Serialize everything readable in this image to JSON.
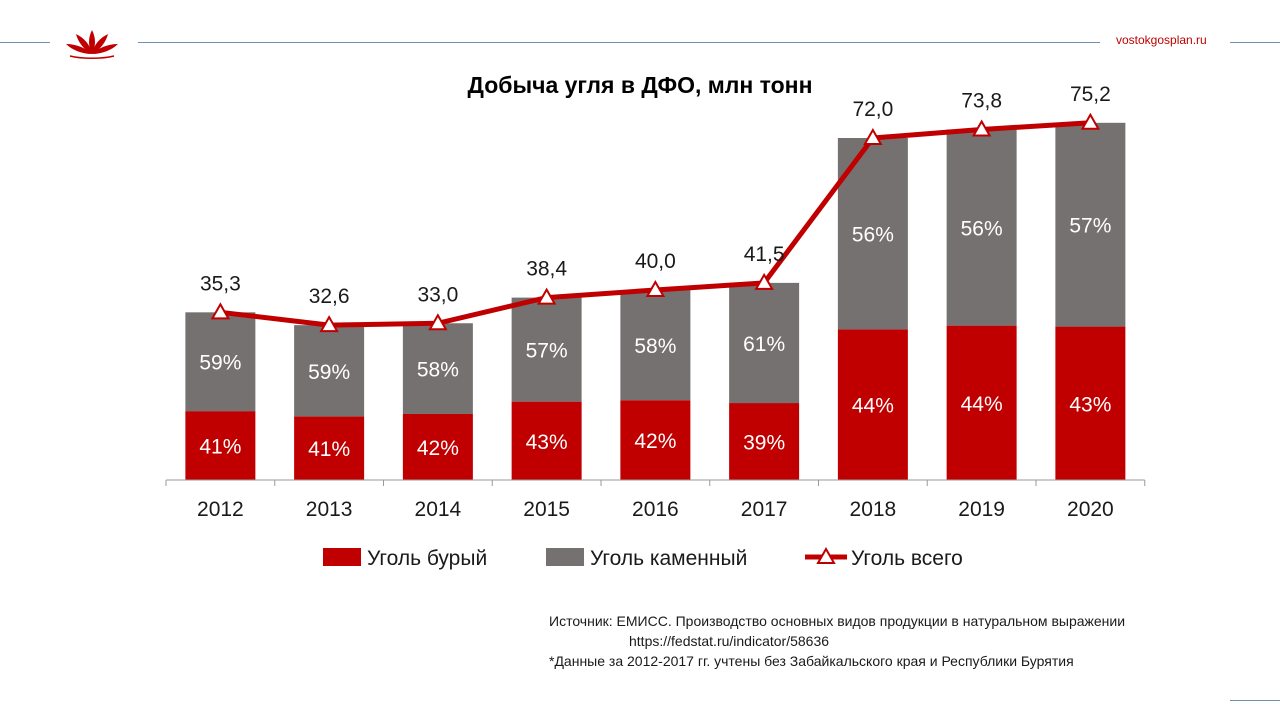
{
  "header": {
    "site": "vostokgosplan.ru",
    "logo_icon": "lotus-logo-icon"
  },
  "chart_data": {
    "type": "bar",
    "title": "Добыча угля в ДФО, млн тонн",
    "categories": [
      "2012",
      "2013",
      "2014",
      "2015",
      "2016",
      "2017",
      "2018",
      "2019",
      "2020"
    ],
    "stacked": true,
    "series": [
      {
        "name": "Уголь бурый",
        "kind": "bar",
        "color": "#c00000",
        "labels": [
          "41%",
          "41%",
          "42%",
          "43%",
          "42%",
          "39%",
          "44%",
          "44%",
          "43%"
        ],
        "values": [
          14.5,
          13.4,
          13.9,
          16.5,
          16.8,
          16.2,
          31.7,
          32.5,
          32.3
        ]
      },
      {
        "name": "Уголь каменный",
        "kind": "bar",
        "color": "#767171",
        "labels": [
          "59%",
          "59%",
          "58%",
          "57%",
          "58%",
          "61%",
          "56%",
          "56%",
          "57%"
        ],
        "values": [
          20.8,
          19.2,
          19.1,
          21.9,
          23.2,
          25.3,
          40.3,
          41.3,
          42.9
        ]
      },
      {
        "name": "Уголь всего",
        "kind": "line",
        "color": "#c00000",
        "labels": [
          "35,3",
          "32,6",
          "33,0",
          "38,4",
          "40,0",
          "41,5",
          "72,0",
          "73,8",
          "75,2"
        ],
        "values": [
          35.3,
          32.6,
          33.0,
          38.4,
          40.0,
          41.5,
          72.0,
          73.8,
          75.2
        ]
      }
    ],
    "ylim": [
      0,
      80
    ],
    "grid": false,
    "legend_position": "bottom",
    "xlabel": "",
    "ylabel": ""
  },
  "source": {
    "line1": "Источник: ЕМИСС. Производство основных видов продукции в натуральном выражении",
    "line2": "https://fedstat.ru/indicator/58636",
    "line3": "*Данные за 2012-2017 гг. учтены без Забайкальского края и Республики Бурятия"
  }
}
